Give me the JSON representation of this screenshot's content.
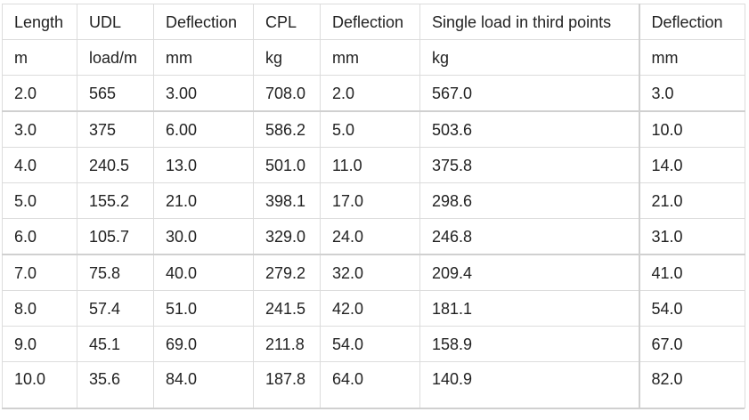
{
  "table": {
    "header": [
      "Length",
      "UDL",
      "Deflection",
      "CPL",
      "Deflection",
      "Single load in third points",
      "Deflection"
    ],
    "units": [
      "m",
      "load/m",
      "mm",
      "kg",
      "mm",
      "kg",
      "mm"
    ],
    "rows": [
      [
        "2.0",
        "565",
        "3.00",
        "708.0",
        "2.0",
        "567.0",
        "3.0"
      ],
      [
        "3.0",
        "375",
        "6.00",
        "586.2",
        "5.0",
        "503.6",
        "10.0"
      ],
      [
        "4.0",
        "240.5",
        "13.0",
        "501.0",
        "11.0",
        "375.8",
        "14.0"
      ],
      [
        "5.0",
        "155.2",
        "21.0",
        "398.1",
        "17.0",
        "298.6",
        "21.0"
      ],
      [
        "6.0",
        "105.7",
        "30.0",
        "329.0",
        "24.0",
        "246.8",
        "31.0"
      ],
      [
        "7.0",
        "75.8",
        "40.0",
        "279.2",
        "32.0",
        "209.4",
        "41.0"
      ],
      [
        "8.0",
        "57.4",
        "51.0",
        "241.5",
        "42.0",
        "181.1",
        "54.0"
      ],
      [
        "9.0",
        "45.1",
        "69.0",
        "211.8",
        "54.0",
        "158.9",
        "67.0"
      ],
      [
        "10.0",
        "35.6",
        "84.0",
        "187.8",
        "64.0",
        "140.9",
        "82.0"
      ]
    ]
  }
}
